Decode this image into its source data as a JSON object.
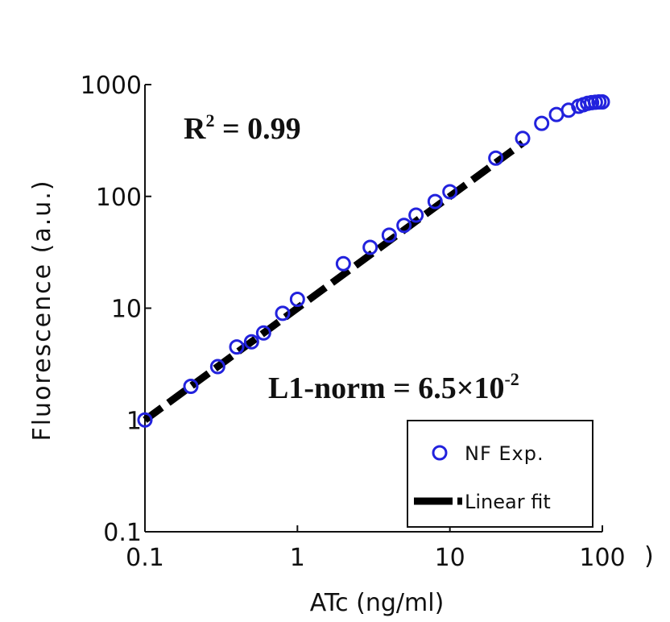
{
  "chart_data": {
    "type": "scatter",
    "xscale": "log",
    "yscale": "log",
    "xlim": [
      0.1,
      100
    ],
    "ylim": [
      0.1,
      1000
    ],
    "xlabel": "ATc (ng/ml)",
    "ylabel": "Fluorescence (a.u.)",
    "x_ticks": [
      "0.1",
      "1",
      "10",
      "100"
    ],
    "y_ticks": [
      "0.1",
      "1",
      "10",
      "100",
      "1000"
    ],
    "annotations": {
      "r2_base": "R",
      "r2_exp": "2",
      "r2_value": " = 0.99",
      "l1_base": "L1-norm = 6.5×10",
      "l1_exp": "-2"
    },
    "legend": {
      "position": "bottom-right",
      "entries": [
        "NF Exp.",
        "Linear fit"
      ]
    },
    "series": [
      {
        "name": "NF Exp.",
        "marker": "circle-open",
        "color": "#2222dd",
        "points": [
          [
            0.1,
            1.0
          ],
          [
            0.2,
            2.0
          ],
          [
            0.3,
            3.0
          ],
          [
            0.4,
            4.5
          ],
          [
            0.5,
            5.0
          ],
          [
            0.6,
            6.0
          ],
          [
            0.8,
            9.0
          ],
          [
            1.0,
            12.0
          ],
          [
            2.0,
            25.0
          ],
          [
            3.0,
            35.0
          ],
          [
            4.0,
            45.0
          ],
          [
            5.0,
            55.0
          ],
          [
            6.0,
            68.0
          ],
          [
            8.0,
            90.0
          ],
          [
            10.0,
            110.0
          ],
          [
            20.0,
            220.0
          ],
          [
            30.0,
            330.0
          ],
          [
            40.0,
            450.0
          ],
          [
            50.0,
            540.0
          ],
          [
            60.0,
            590.0
          ],
          [
            70.0,
            640.0
          ],
          [
            75.0,
            660.0
          ],
          [
            80.0,
            680.0
          ],
          [
            85.0,
            690.0
          ],
          [
            90.0,
            695.0
          ],
          [
            95.0,
            700.0
          ],
          [
            100.0,
            700.0
          ]
        ]
      },
      {
        "name": "Linear fit",
        "style": "dashed",
        "color": "#000000",
        "points": [
          [
            0.1,
            1.0
          ],
          [
            30.0,
            300.0
          ]
        ]
      }
    ]
  }
}
